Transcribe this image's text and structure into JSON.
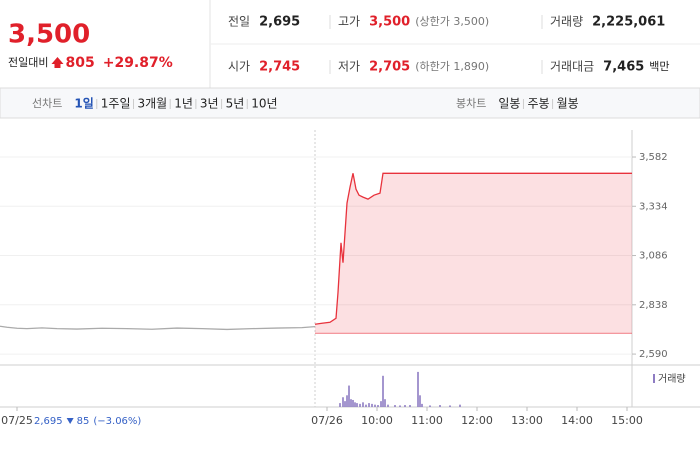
{
  "header": {
    "price": "3,500",
    "change_label": "전일대비",
    "change": "805",
    "change_pct": "+29.87%"
  },
  "info": [
    [
      {
        "label": "전일",
        "value": "2,695"
      },
      {
        "label": "고가",
        "value": "3,500",
        "note": "(상한가 3,500)",
        "highlight": true
      },
      {
        "label": "거래량",
        "value": "2,225,061"
      }
    ],
    [
      {
        "label": "시가",
        "value": "2,745",
        "highlight": true
      },
      {
        "label": "저가",
        "value": "2,705",
        "note": "(하한가 1,890)",
        "highlight": true
      },
      {
        "label": "거래대금",
        "value": "7,465",
        "note": "백만"
      }
    ]
  ],
  "tabs": {
    "line_label": "선차트",
    "periods": [
      "1일",
      "1주일",
      "3개월",
      "1년",
      "3년",
      "5년",
      "10년"
    ],
    "selected": 0,
    "candle_label": "봉차트",
    "candles": [
      "일봉",
      "주봉",
      "월봉"
    ]
  },
  "chart_data": {
    "type": "line",
    "xlim": [
      2.46,
      15.1
    ],
    "ylim": [
      2535,
      3718
    ],
    "grid": true,
    "baseline": 2695,
    "xticks": [
      {
        "value": 2.8,
        "label": "07/25"
      },
      {
        "value": 9,
        "label": "07/26"
      },
      {
        "value": 10,
        "label": "10:00"
      },
      {
        "value": 11,
        "label": "11:00"
      },
      {
        "value": 12,
        "label": "12:00"
      },
      {
        "value": 13,
        "label": "13:00"
      },
      {
        "value": 14,
        "label": "14:00"
      },
      {
        "value": 15,
        "label": "15:00"
      }
    ],
    "yticks": [
      {
        "value": 3582,
        "label": "3,582"
      },
      {
        "value": 3334,
        "label": "3,334"
      },
      {
        "value": 3086,
        "label": "3,086"
      },
      {
        "value": 2838,
        "label": "2,838"
      },
      {
        "value": 2590,
        "label": "2,590"
      }
    ],
    "series": [
      {
        "color": "#aaaaaa",
        "fill": false,
        "x": [
          2.46,
          2.6,
          2.8,
          3.0,
          3.3,
          3.6,
          4.0,
          4.5,
          5.0,
          5.5,
          6.0,
          6.5,
          7.0,
          7.5,
          8.0,
          8.5,
          8.76
        ],
        "values": [
          2730,
          2725,
          2720,
          2718,
          2722,
          2718,
          2716,
          2720,
          2718,
          2715,
          2721,
          2718,
          2714,
          2718,
          2721,
          2723,
          2728
        ]
      },
      {
        "color": "#e8323c",
        "fill": true,
        "x": [
          8.76,
          8.9,
          9.06,
          9.18,
          9.22,
          9.28,
          9.32,
          9.36,
          9.4,
          9.46,
          9.52,
          9.58,
          9.64,
          9.72,
          9.82,
          9.94,
          10.06,
          10.12,
          15.1
        ],
        "values": [
          2740,
          2745,
          2750,
          2770,
          2900,
          3150,
          3050,
          3200,
          3350,
          3430,
          3500,
          3420,
          3390,
          3380,
          3370,
          3390,
          3400,
          3500,
          3500
        ]
      }
    ],
    "volume": {
      "name": "거래량",
      "color": "#8e7cc3",
      "vlim": [
        0,
        100
      ],
      "x": [
        9.26,
        9.32,
        9.36,
        9.4,
        9.44,
        9.48,
        9.52,
        9.56,
        9.6,
        9.66,
        9.72,
        9.78,
        9.84,
        9.9,
        9.96,
        10.02,
        10.08,
        10.12,
        10.16,
        10.22,
        10.36,
        10.46,
        10.56,
        10.66,
        10.82,
        10.86,
        10.9,
        11.06,
        11.26,
        11.46,
        11.66
      ],
      "values": [
        10,
        25,
        15,
        30,
        55,
        20,
        18,
        12,
        10,
        8,
        12,
        6,
        10,
        8,
        6,
        5,
        15,
        80,
        20,
        6,
        5,
        4,
        5,
        5,
        90,
        30,
        8,
        4,
        5,
        4,
        6
      ]
    },
    "annotation": {
      "value": "2,695",
      "change": "85",
      "pct": "(−3.06%)"
    }
  }
}
